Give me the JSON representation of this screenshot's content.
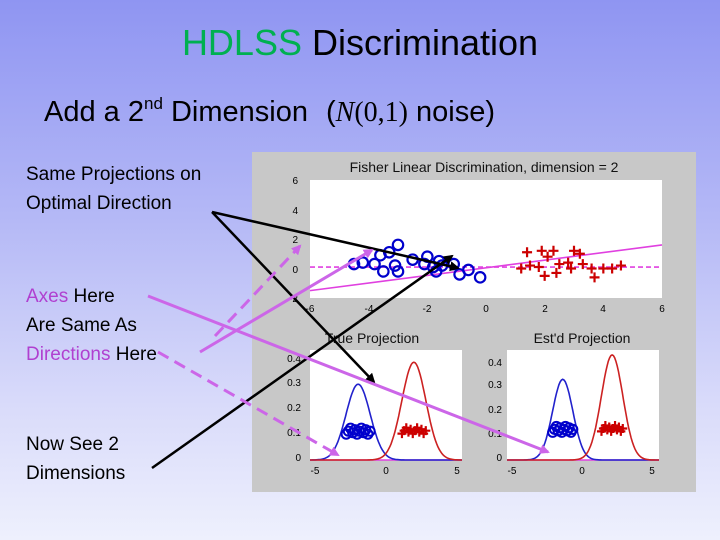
{
  "slide": {
    "title_highlight": "HDLSS",
    "title_rest": " Discrimination",
    "subtitle_pre": "Add a 2",
    "subtitle_sup": "nd",
    "subtitle_mid": " Dimension",
    "subtitle_math_n": "N",
    "subtitle_math_args": "(0,1)",
    "subtitle_post": " noise)",
    "colors": {
      "title_highlight": "#00b050",
      "pink_text": "#b040d0",
      "arrow_pink": "#cc66e8"
    }
  },
  "notes": {
    "note1_line1": "Same Projections on",
    "note1_line2": "Optimal Direction",
    "note2_axes": "Axes",
    "note2_here": " Here",
    "note2_line2": "Are Same As",
    "note2_directions": "Directions",
    "note2_here2": " Here",
    "note3_line1": "Now See 2",
    "note3_line2": "Dimensions"
  },
  "figure": {
    "top_title": "Fisher Linear Discrimination, dimension = 2",
    "top_yticks": [
      "6",
      "4",
      "2",
      "0",
      "-2"
    ],
    "top_xticks": [
      "-6",
      "-4",
      "-2",
      "0",
      "2",
      "4",
      "6"
    ],
    "left_title": "True Projection",
    "right_title": "Est'd Projection",
    "bottom_yticks": [
      "0.4",
      "0.3",
      "0.2",
      "0.1",
      "0"
    ],
    "bottom_xticks": [
      "-5",
      "0",
      "5"
    ]
  },
  "chart_data": [
    {
      "type": "scatter",
      "title": "Fisher Linear Discrimination, dimension = 2",
      "xlim": [
        -6,
        6
      ],
      "ylim": [
        -2,
        6
      ],
      "series": [
        {
          "marker": "circle",
          "color": "#0000cc",
          "points": [
            [
              -4.5,
              0.3
            ],
            [
              -4.2,
              0.4
            ],
            [
              -3.8,
              0.3
            ],
            [
              -3.6,
              0.9
            ],
            [
              -3.5,
              -0.2
            ],
            [
              -3.3,
              1.1
            ],
            [
              -3.1,
              0.2
            ],
            [
              -3.0,
              1.6
            ],
            [
              -3.0,
              -0.2
            ],
            [
              -2.5,
              0.6
            ],
            [
              -2.1,
              0.3
            ],
            [
              -2.0,
              0.8
            ],
            [
              -1.8,
              0.1
            ],
            [
              -1.7,
              -0.2
            ],
            [
              -1.6,
              0.5
            ],
            [
              -1.5,
              0.2
            ],
            [
              -1.1,
              0.3
            ],
            [
              -0.9,
              -0.4
            ],
            [
              -0.6,
              -0.1
            ],
            [
              -0.2,
              -0.6
            ]
          ]
        },
        {
          "marker": "plus",
          "color": "#cc0000",
          "points": [
            [
              1.2,
              0.0
            ],
            [
              1.4,
              1.1
            ],
            [
              1.5,
              0.2
            ],
            [
              1.8,
              0.1
            ],
            [
              1.9,
              1.2
            ],
            [
              2.0,
              -0.5
            ],
            [
              2.1,
              0.8
            ],
            [
              2.3,
              1.2
            ],
            [
              2.4,
              -0.3
            ],
            [
              2.5,
              0.3
            ],
            [
              2.8,
              0.4
            ],
            [
              2.9,
              0.0
            ],
            [
              3.0,
              1.2
            ],
            [
              3.2,
              1.0
            ],
            [
              3.3,
              0.3
            ],
            [
              3.6,
              0.0
            ],
            [
              3.7,
              -0.6
            ],
            [
              4.0,
              0.0
            ],
            [
              4.3,
              0.0
            ],
            [
              4.6,
              0.2
            ]
          ]
        }
      ],
      "lines": [
        {
          "name": "solid",
          "color": "#e040e0",
          "x": [
            -6,
            6
          ],
          "y": [
            -1.5,
            1.6
          ]
        },
        {
          "name": "dashed",
          "color": "#e040e0",
          "x": [
            -6,
            6
          ],
          "y": [
            0.1,
            0.1
          ]
        }
      ]
    },
    {
      "type": "line",
      "title": "True Projection",
      "xlim": [
        -6,
        6
      ],
      "ylim": [
        0,
        0.45
      ],
      "series": [
        {
          "color": "#2222cc",
          "shape": "gaussian",
          "mean": -2.2,
          "sd": 0.95,
          "peak": 0.31
        },
        {
          "color": "#cc2222",
          "shape": "gaussian",
          "mean": 2.2,
          "sd": 0.95,
          "peak": 0.4
        }
      ]
    },
    {
      "type": "line",
      "title": "Est'd Projection",
      "xlim": [
        -6,
        6
      ],
      "ylim": [
        0,
        0.45
      ],
      "series": [
        {
          "color": "#2222cc",
          "shape": "gaussian",
          "mean": -1.6,
          "sd": 0.8,
          "peak": 0.33
        },
        {
          "color": "#cc2222",
          "shape": "gaussian",
          "mean": 2.3,
          "sd": 0.85,
          "peak": 0.43
        }
      ]
    }
  ]
}
